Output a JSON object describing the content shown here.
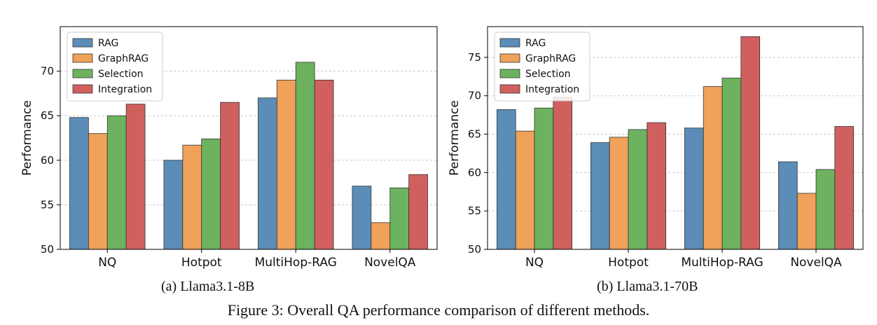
{
  "figure": {
    "caption": "Figure 3: Overall QA performance comparison of different methods."
  },
  "chart_data": [
    {
      "type": "bar",
      "subcaption": "(a) Llama3.1-8B",
      "categories": [
        "NQ",
        "Hotpot",
        "MultiHop-RAG",
        "NovelQA"
      ],
      "ylabel": "Performance",
      "xlabel": "",
      "ylim": [
        50,
        75
      ],
      "yticks": [
        50,
        55,
        60,
        65,
        70
      ],
      "grid": "horizontal dashed",
      "legend_position": "top-left",
      "series": [
        {
          "name": "RAG",
          "color": "#5b8db8",
          "values": [
            64.8,
            60.0,
            67.0,
            57.1
          ]
        },
        {
          "name": "GraphRAG",
          "color": "#f0a15a",
          "values": [
            63.0,
            61.7,
            69.0,
            53.0
          ]
        },
        {
          "name": "Selection",
          "color": "#6db25f",
          "values": [
            65.0,
            62.4,
            71.0,
            56.9
          ]
        },
        {
          "name": "Integration",
          "color": "#d0605e",
          "values": [
            66.3,
            66.5,
            69.0,
            58.4
          ]
        }
      ]
    },
    {
      "type": "bar",
      "subcaption": "(b) Llama3.1-70B",
      "categories": [
        "NQ",
        "Hotpot",
        "MultiHop-RAG",
        "NovelQA"
      ],
      "ylabel": "Performance",
      "xlabel": "",
      "ylim": [
        50,
        79
      ],
      "yticks": [
        50,
        55,
        60,
        65,
        70,
        75
      ],
      "grid": "horizontal dashed",
      "legend_position": "top-left",
      "series": [
        {
          "name": "RAG",
          "color": "#5b8db8",
          "values": [
            68.2,
            63.9,
            65.8,
            61.4
          ]
        },
        {
          "name": "GraphRAG",
          "color": "#f0a15a",
          "values": [
            65.4,
            64.6,
            71.2,
            57.3
          ]
        },
        {
          "name": "Selection",
          "color": "#6db25f",
          "values": [
            68.4,
            65.6,
            72.3,
            60.4
          ]
        },
        {
          "name": "Integration",
          "color": "#d0605e",
          "values": [
            69.8,
            66.5,
            77.7,
            66.0
          ]
        }
      ]
    }
  ]
}
